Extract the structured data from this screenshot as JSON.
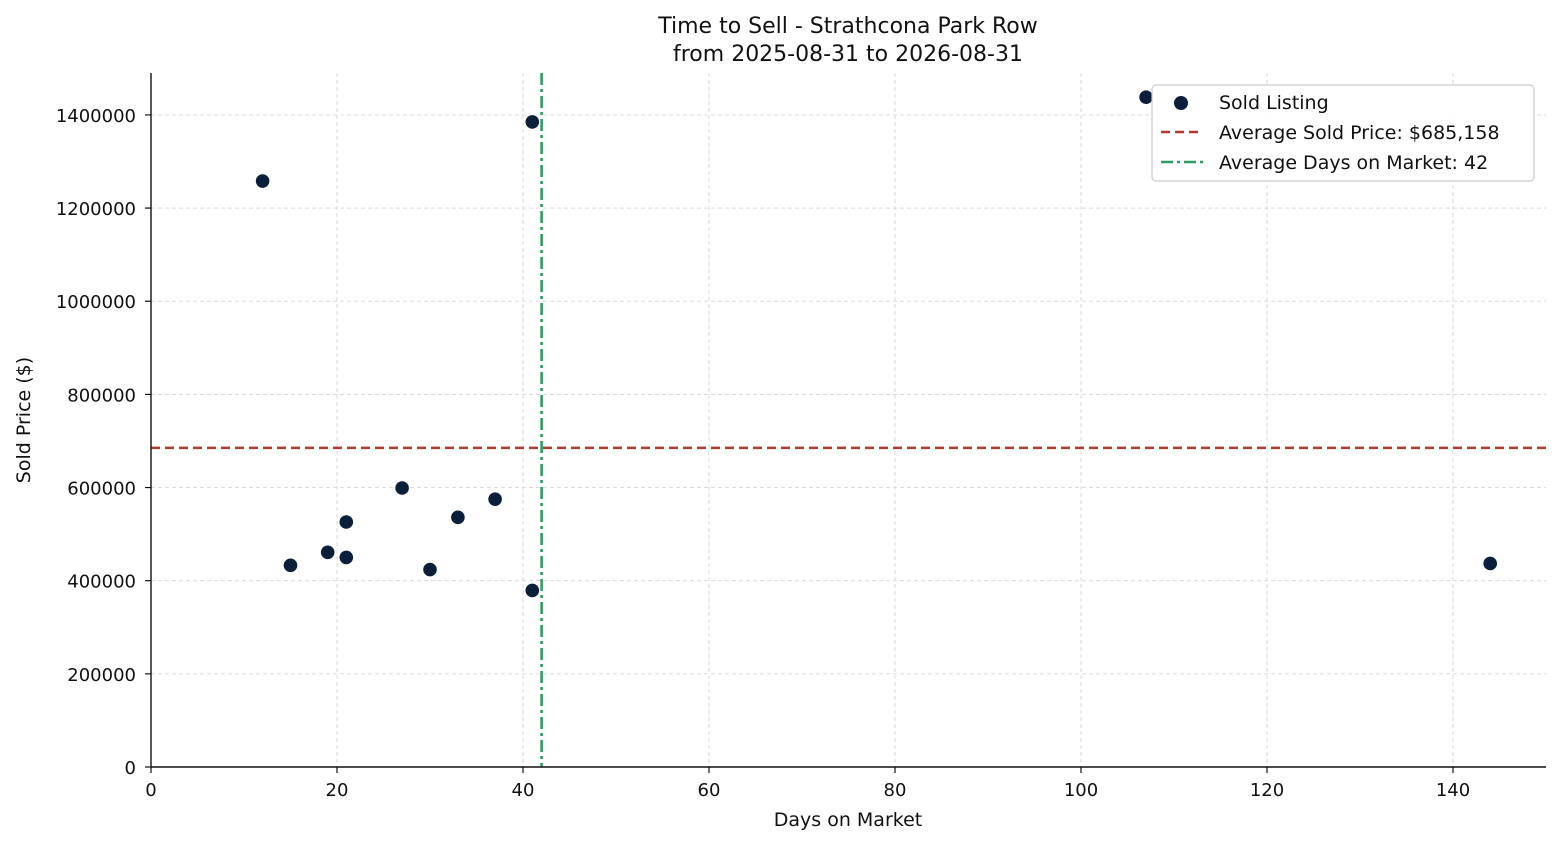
{
  "chart_data": {
    "type": "scatter",
    "title": "Time to Sell - Strathcona Park Row",
    "subtitle": "from 2025-08-31 to 2026-08-31",
    "xlabel": "Days on Market",
    "ylabel": "Sold Price ($)",
    "xlim": [
      0,
      150
    ],
    "ylim": [
      0,
      1490000
    ],
    "xticks": [
      0,
      20,
      40,
      60,
      80,
      100,
      120,
      140
    ],
    "yticks": [
      0,
      200000,
      400000,
      600000,
      800000,
      1000000,
      1200000,
      1400000
    ],
    "grid": true,
    "legend_position": "top-right",
    "series": [
      {
        "name": "Sold Listing",
        "color": "#0b1f3a",
        "points": [
          {
            "x": 12,
            "y": 1258000
          },
          {
            "x": 15,
            "y": 433000
          },
          {
            "x": 19,
            "y": 461000
          },
          {
            "x": 21,
            "y": 526000
          },
          {
            "x": 21,
            "y": 450000
          },
          {
            "x": 27,
            "y": 599000
          },
          {
            "x": 30,
            "y": 424000
          },
          {
            "x": 33,
            "y": 536000
          },
          {
            "x": 37,
            "y": 575000
          },
          {
            "x": 41,
            "y": 1385000
          },
          {
            "x": 41,
            "y": 379000
          },
          {
            "x": 107,
            "y": 1438000
          },
          {
            "x": 144,
            "y": 437000
          }
        ]
      }
    ],
    "reference_lines": [
      {
        "name": "Average Sold Price: $685,158",
        "orientation": "horizontal",
        "value": 685158,
        "color": "#b03a2e",
        "style": "dashed"
      },
      {
        "name": "Average Days on Market: 42",
        "orientation": "vertical",
        "value": 42,
        "color": "#2e9e62",
        "style": "dashdot"
      }
    ]
  }
}
